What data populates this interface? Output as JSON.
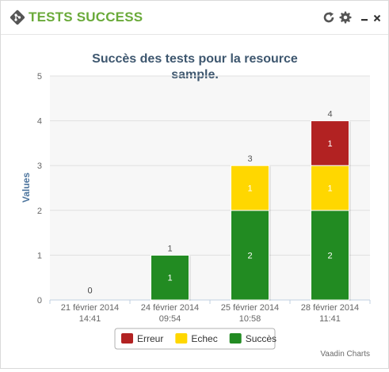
{
  "panel": {
    "title": "TESTS SUCCESS"
  },
  "icons": {
    "logo": "git-diamond-icon",
    "refresh": "refresh-icon",
    "settings": "gear-icon",
    "minimize": "minimize-icon",
    "close": "close-icon"
  },
  "chart_data": {
    "type": "bar",
    "stacked": true,
    "title": "Succès des tests pour la resource sample.",
    "title_lines": [
      "Succès des tests pour la resource",
      "sample."
    ],
    "ylabel": "Values",
    "xlabel": "",
    "ylim": [
      0,
      5
    ],
    "yticks": [
      0,
      1,
      2,
      3,
      4,
      5
    ],
    "grid": true,
    "legend": "bottom-center",
    "categories": [
      [
        "21 février 2014",
        "14:41"
      ],
      [
        "24 février 2014",
        "09:54"
      ],
      [
        "25 février 2014",
        "10:58"
      ],
      [
        "28 février 2014",
        "11:41"
      ]
    ],
    "series": [
      {
        "name": "Erreur",
        "color": "#b22222",
        "values": [
          0,
          0,
          0,
          1
        ]
      },
      {
        "name": "Echec",
        "color": "#ffd700",
        "values": [
          0,
          0,
          1,
          1
        ]
      },
      {
        "name": "Succès",
        "color": "#228b22",
        "values": [
          0,
          1,
          2,
          2
        ]
      }
    ],
    "stack_order_bottom_to_top": [
      "Succès",
      "Echec",
      "Erreur"
    ],
    "totals": [
      0,
      1,
      3,
      4
    ],
    "credits": "Vaadin Charts"
  }
}
